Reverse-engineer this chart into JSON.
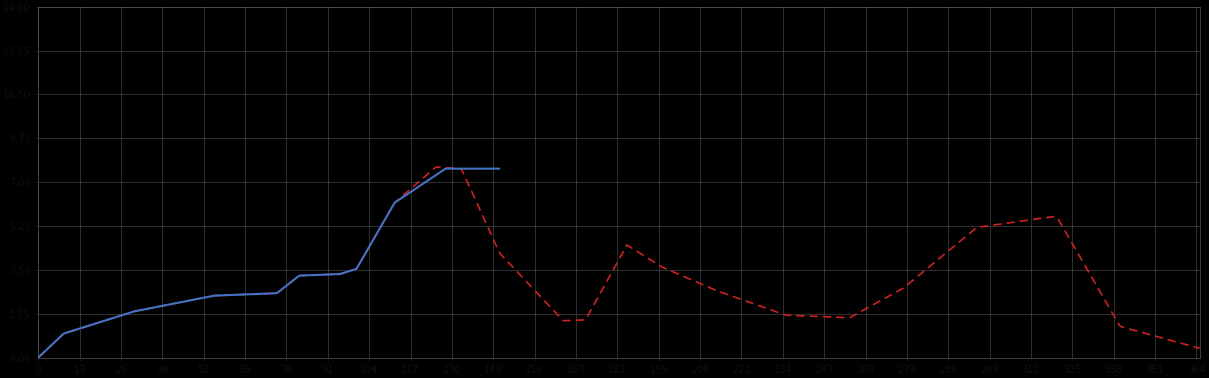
{
  "background_color": "#000000",
  "plot_bg_color": "#000000",
  "grid_color": "#444444",
  "blue_color": "#4472c4",
  "red_color": "#cc2222",
  "figsize": [
    12.09,
    3.78
  ],
  "dpi": 100,
  "xlim": [
    0,
    365
  ],
  "ylim": [
    0,
    14
  ],
  "grid_major_x": 13,
  "grid_major_y": 1.75,
  "tick_label_color": "#111111"
}
